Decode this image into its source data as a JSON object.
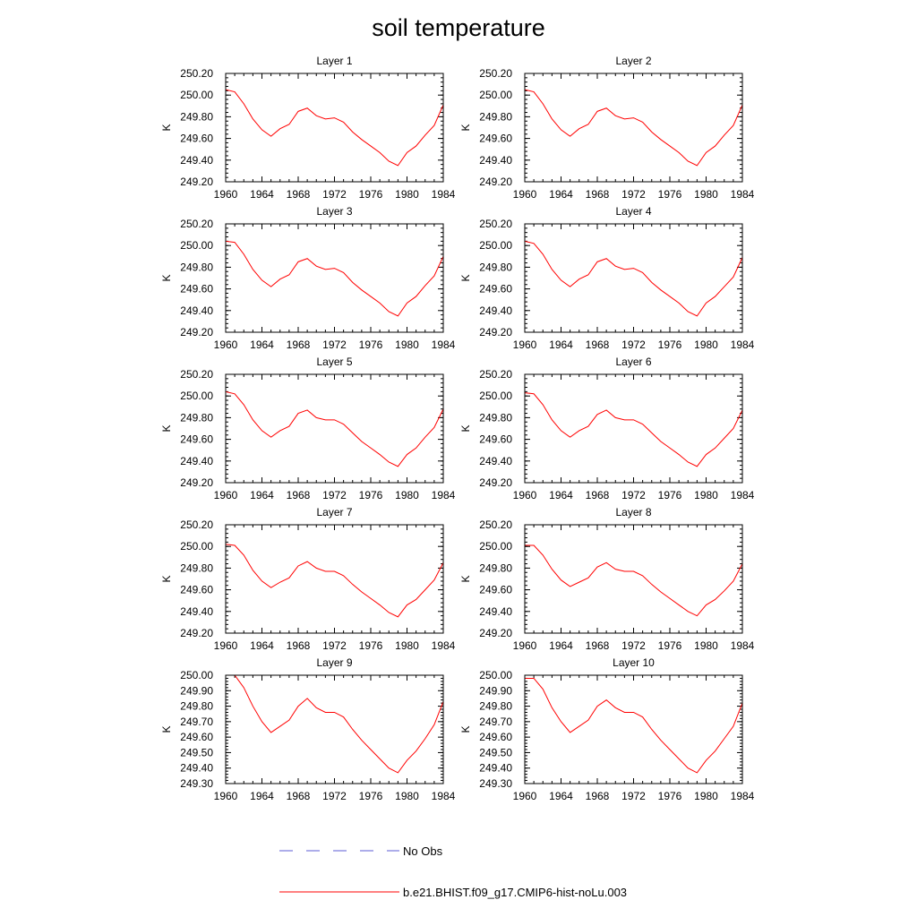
{
  "title": "soil temperature",
  "colors": {
    "model": "#ff0000",
    "obs": "#5b5bd6",
    "axis": "#000000"
  },
  "legend": [
    {
      "label": "No Obs",
      "style": "dashed",
      "color": "#5b5bd6"
    },
    {
      "label": "b.e21.BHIST.f09_g17.CMIP6-hist-noLu.003",
      "style": "solid",
      "color": "#ff0000"
    }
  ],
  "chart_data": [
    {
      "type": "line",
      "title": "Layer 1",
      "ylabel": "K",
      "xlim": [
        1960,
        1984
      ],
      "ylim": [
        249.2,
        250.2
      ],
      "xticks": [
        1960,
        1964,
        1968,
        1972,
        1976,
        1980,
        1984
      ],
      "yticks": [
        "249.20",
        "249.40",
        "249.60",
        "249.80",
        "250.00",
        "250.20"
      ],
      "grid": false,
      "x": [
        1960,
        1961,
        1962,
        1963,
        1964,
        1965,
        1966,
        1967,
        1968,
        1969,
        1970,
        1971,
        1972,
        1973,
        1974,
        1975,
        1976,
        1977,
        1978,
        1979,
        1980,
        1981,
        1982,
        1983,
        1984
      ],
      "series": [
        {
          "name": "b.e21.BHIST.f09_g17.CMIP6-hist-noLu.003",
          "values": [
            250.05,
            250.03,
            249.92,
            249.78,
            249.68,
            249.62,
            249.69,
            249.73,
            249.85,
            249.88,
            249.81,
            249.78,
            249.79,
            249.75,
            249.66,
            249.59,
            249.53,
            249.47,
            249.39,
            249.35,
            249.47,
            249.53,
            249.63,
            249.72,
            249.91
          ]
        }
      ]
    },
    {
      "type": "line",
      "title": "Layer 2",
      "ylabel": "K",
      "xlim": [
        1960,
        1984
      ],
      "ylim": [
        249.2,
        250.2
      ],
      "xticks": [
        1960,
        1964,
        1968,
        1972,
        1976,
        1980,
        1984
      ],
      "yticks": [
        "249.20",
        "249.40",
        "249.60",
        "249.80",
        "250.00",
        "250.20"
      ],
      "grid": false,
      "x": [
        1960,
        1961,
        1962,
        1963,
        1964,
        1965,
        1966,
        1967,
        1968,
        1969,
        1970,
        1971,
        1972,
        1973,
        1974,
        1975,
        1976,
        1977,
        1978,
        1979,
        1980,
        1981,
        1982,
        1983,
        1984
      ],
      "series": [
        {
          "name": "b.e21.BHIST.f09_g17.CMIP6-hist-noLu.003",
          "values": [
            250.05,
            250.03,
            249.92,
            249.78,
            249.68,
            249.62,
            249.69,
            249.73,
            249.85,
            249.88,
            249.81,
            249.78,
            249.79,
            249.75,
            249.66,
            249.59,
            249.53,
            249.47,
            249.39,
            249.35,
            249.47,
            249.53,
            249.63,
            249.72,
            249.91
          ]
        }
      ]
    },
    {
      "type": "line",
      "title": "Layer 3",
      "ylabel": "K",
      "xlim": [
        1960,
        1984
      ],
      "ylim": [
        249.2,
        250.2
      ],
      "xticks": [
        1960,
        1964,
        1968,
        1972,
        1976,
        1980,
        1984
      ],
      "yticks": [
        "249.20",
        "249.40",
        "249.60",
        "249.80",
        "250.00",
        "250.20"
      ],
      "grid": false,
      "x": [
        1960,
        1961,
        1962,
        1963,
        1964,
        1965,
        1966,
        1967,
        1968,
        1969,
        1970,
        1971,
        1972,
        1973,
        1974,
        1975,
        1976,
        1977,
        1978,
        1979,
        1980,
        1981,
        1982,
        1983,
        1984
      ],
      "series": [
        {
          "name": "b.e21.BHIST.f09_g17.CMIP6-hist-noLu.003",
          "values": [
            250.04,
            250.03,
            249.92,
            249.78,
            249.68,
            249.62,
            249.69,
            249.73,
            249.85,
            249.88,
            249.81,
            249.78,
            249.79,
            249.75,
            249.66,
            249.59,
            249.53,
            249.47,
            249.39,
            249.35,
            249.47,
            249.53,
            249.63,
            249.72,
            249.9
          ]
        }
      ]
    },
    {
      "type": "line",
      "title": "Layer 4",
      "ylabel": "K",
      "xlim": [
        1960,
        1984
      ],
      "ylim": [
        249.2,
        250.2
      ],
      "xticks": [
        1960,
        1964,
        1968,
        1972,
        1976,
        1980,
        1984
      ],
      "yticks": [
        "249.20",
        "249.40",
        "249.60",
        "249.80",
        "250.00",
        "250.20"
      ],
      "grid": false,
      "x": [
        1960,
        1961,
        1962,
        1963,
        1964,
        1965,
        1966,
        1967,
        1968,
        1969,
        1970,
        1971,
        1972,
        1973,
        1974,
        1975,
        1976,
        1977,
        1978,
        1979,
        1980,
        1981,
        1982,
        1983,
        1984
      ],
      "series": [
        {
          "name": "b.e21.BHIST.f09_g17.CMIP6-hist-noLu.003",
          "values": [
            250.04,
            250.02,
            249.92,
            249.78,
            249.68,
            249.62,
            249.69,
            249.73,
            249.85,
            249.88,
            249.81,
            249.78,
            249.79,
            249.75,
            249.66,
            249.59,
            249.53,
            249.47,
            249.39,
            249.35,
            249.47,
            249.53,
            249.62,
            249.71,
            249.89
          ]
        }
      ]
    },
    {
      "type": "line",
      "title": "Layer 5",
      "ylabel": "K",
      "xlim": [
        1960,
        1984
      ],
      "ylim": [
        249.2,
        250.2
      ],
      "xticks": [
        1960,
        1964,
        1968,
        1972,
        1976,
        1980,
        1984
      ],
      "yticks": [
        "249.20",
        "249.40",
        "249.60",
        "249.80",
        "250.00",
        "250.20"
      ],
      "grid": false,
      "x": [
        1960,
        1961,
        1962,
        1963,
        1964,
        1965,
        1966,
        1967,
        1968,
        1969,
        1970,
        1971,
        1972,
        1973,
        1974,
        1975,
        1976,
        1977,
        1978,
        1979,
        1980,
        1981,
        1982,
        1983,
        1984
      ],
      "series": [
        {
          "name": "b.e21.BHIST.f09_g17.CMIP6-hist-noLu.003",
          "values": [
            250.04,
            250.02,
            249.92,
            249.78,
            249.68,
            249.62,
            249.68,
            249.72,
            249.84,
            249.87,
            249.8,
            249.78,
            249.78,
            249.74,
            249.66,
            249.58,
            249.52,
            249.46,
            249.39,
            249.35,
            249.46,
            249.52,
            249.62,
            249.71,
            249.88
          ]
        }
      ]
    },
    {
      "type": "line",
      "title": "Layer 6",
      "ylabel": "K",
      "xlim": [
        1960,
        1984
      ],
      "ylim": [
        249.2,
        250.2
      ],
      "xticks": [
        1960,
        1964,
        1968,
        1972,
        1976,
        1980,
        1984
      ],
      "yticks": [
        "249.20",
        "249.40",
        "249.60",
        "249.80",
        "250.00",
        "250.20"
      ],
      "grid": false,
      "x": [
        1960,
        1961,
        1962,
        1963,
        1964,
        1965,
        1966,
        1967,
        1968,
        1969,
        1970,
        1971,
        1972,
        1973,
        1974,
        1975,
        1976,
        1977,
        1978,
        1979,
        1980,
        1981,
        1982,
        1983,
        1984
      ],
      "series": [
        {
          "name": "b.e21.BHIST.f09_g17.CMIP6-hist-noLu.003",
          "values": [
            250.03,
            250.02,
            249.92,
            249.78,
            249.68,
            249.62,
            249.68,
            249.72,
            249.83,
            249.87,
            249.8,
            249.78,
            249.78,
            249.74,
            249.66,
            249.58,
            249.52,
            249.46,
            249.39,
            249.35,
            249.46,
            249.52,
            249.61,
            249.7,
            249.87
          ]
        }
      ]
    },
    {
      "type": "line",
      "title": "Layer 7",
      "ylabel": "K",
      "xlim": [
        1960,
        1984
      ],
      "ylim": [
        249.2,
        250.2
      ],
      "xticks": [
        1960,
        1964,
        1968,
        1972,
        1976,
        1980,
        1984
      ],
      "yticks": [
        "249.20",
        "249.40",
        "249.60",
        "249.80",
        "250.00",
        "250.20"
      ],
      "grid": false,
      "x": [
        1960,
        1961,
        1962,
        1963,
        1964,
        1965,
        1966,
        1967,
        1968,
        1969,
        1970,
        1971,
        1972,
        1973,
        1974,
        1975,
        1976,
        1977,
        1978,
        1979,
        1980,
        1981,
        1982,
        1983,
        1984
      ],
      "series": [
        {
          "name": "b.e21.BHIST.f09_g17.CMIP6-hist-noLu.003",
          "values": [
            250.02,
            250.01,
            249.92,
            249.78,
            249.68,
            249.62,
            249.67,
            249.71,
            249.82,
            249.86,
            249.8,
            249.77,
            249.77,
            249.73,
            249.65,
            249.58,
            249.52,
            249.46,
            249.39,
            249.35,
            249.46,
            249.51,
            249.6,
            249.69,
            249.85
          ]
        }
      ]
    },
    {
      "type": "line",
      "title": "Layer 8",
      "ylabel": "K",
      "xlim": [
        1960,
        1984
      ],
      "ylim": [
        249.2,
        250.2
      ],
      "xticks": [
        1960,
        1964,
        1968,
        1972,
        1976,
        1980,
        1984
      ],
      "yticks": [
        "249.20",
        "249.40",
        "249.60",
        "249.80",
        "250.00",
        "250.20"
      ],
      "grid": false,
      "x": [
        1960,
        1961,
        1962,
        1963,
        1964,
        1965,
        1966,
        1967,
        1968,
        1969,
        1970,
        1971,
        1972,
        1973,
        1974,
        1975,
        1976,
        1977,
        1978,
        1979,
        1980,
        1981,
        1982,
        1983,
        1984
      ],
      "series": [
        {
          "name": "b.e21.BHIST.f09_g17.CMIP6-hist-noLu.003",
          "values": [
            250.01,
            250.01,
            249.92,
            249.79,
            249.69,
            249.63,
            249.67,
            249.71,
            249.81,
            249.85,
            249.79,
            249.77,
            249.77,
            249.73,
            249.65,
            249.58,
            249.52,
            249.46,
            249.4,
            249.36,
            249.46,
            249.51,
            249.59,
            249.68,
            249.84
          ]
        }
      ]
    },
    {
      "type": "line",
      "title": "Layer 9",
      "ylabel": "K",
      "xlim": [
        1960,
        1984
      ],
      "ylim": [
        249.3,
        250.0
      ],
      "xticks": [
        1960,
        1964,
        1968,
        1972,
        1976,
        1980,
        1984
      ],
      "yticks": [
        "249.30",
        "249.40",
        "249.50",
        "249.60",
        "249.70",
        "249.80",
        "249.90",
        "250.00"
      ],
      "grid": false,
      "x": [
        1960,
        1961,
        1962,
        1963,
        1964,
        1965,
        1966,
        1967,
        1968,
        1969,
        1970,
        1971,
        1972,
        1973,
        1974,
        1975,
        1976,
        1977,
        1978,
        1979,
        1980,
        1981,
        1982,
        1983,
        1984
      ],
      "series": [
        {
          "name": "b.e21.BHIST.f09_g17.CMIP6-hist-noLu.003",
          "values": [
            250.0,
            250.0,
            249.92,
            249.8,
            249.7,
            249.63,
            249.67,
            249.71,
            249.8,
            249.85,
            249.79,
            249.76,
            249.76,
            249.73,
            249.65,
            249.58,
            249.52,
            249.46,
            249.4,
            249.37,
            249.45,
            249.51,
            249.59,
            249.68,
            249.83
          ]
        }
      ]
    },
    {
      "type": "line",
      "title": "Layer 10",
      "ylabel": "K",
      "xlim": [
        1960,
        1984
      ],
      "ylim": [
        249.3,
        250.0
      ],
      "xticks": [
        1960,
        1964,
        1968,
        1972,
        1976,
        1980,
        1984
      ],
      "yticks": [
        "249.30",
        "249.40",
        "249.50",
        "249.60",
        "249.70",
        "249.80",
        "249.90",
        "250.00"
      ],
      "grid": false,
      "x": [
        1960,
        1961,
        1962,
        1963,
        1964,
        1965,
        1966,
        1967,
        1968,
        1969,
        1970,
        1971,
        1972,
        1973,
        1974,
        1975,
        1976,
        1977,
        1978,
        1979,
        1980,
        1981,
        1982,
        1983,
        1984
      ],
      "series": [
        {
          "name": "b.e21.BHIST.f09_g17.CMIP6-hist-noLu.003",
          "values": [
            249.98,
            249.98,
            249.91,
            249.79,
            249.7,
            249.63,
            249.67,
            249.71,
            249.8,
            249.84,
            249.79,
            249.76,
            249.76,
            249.73,
            249.65,
            249.58,
            249.52,
            249.46,
            249.4,
            249.37,
            249.45,
            249.51,
            249.59,
            249.67,
            249.82
          ]
        }
      ]
    }
  ]
}
